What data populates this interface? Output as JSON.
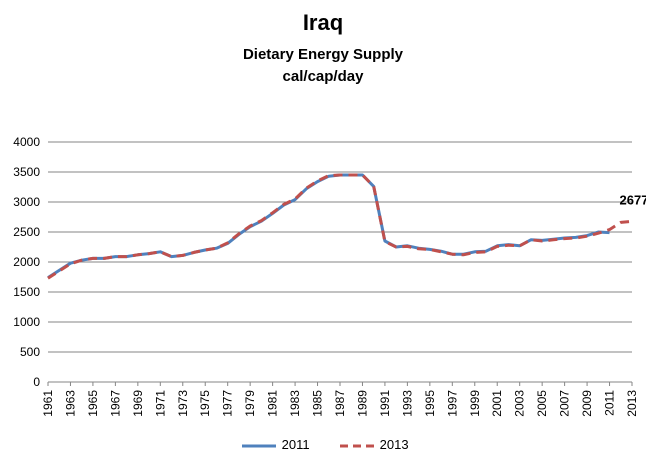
{
  "chart_data": {
    "type": "line",
    "title": "Iraq",
    "subtitle": [
      "Dietary Energy Supply",
      "cal/cap/day"
    ],
    "xlabel": "",
    "ylabel": "",
    "ylim": [
      0,
      4000
    ],
    "yticks": [
      0,
      500,
      1000,
      1500,
      2000,
      2500,
      3000,
      3500,
      4000
    ],
    "xticks": [
      "1961",
      "1963",
      "1965",
      "1967",
      "1969",
      "1971",
      "1973",
      "1975",
      "1977",
      "1979",
      "1981",
      "1983",
      "1985",
      "1987",
      "1989",
      "1991",
      "1993",
      "1995",
      "1997",
      "1999",
      "2001",
      "2003",
      "2005",
      "2007",
      "2009",
      "2011",
      "2013"
    ],
    "grid": true,
    "legend_position": "bottom",
    "series": [
      {
        "name": "2011",
        "color": "#4F81BD",
        "style": "solid",
        "x": [
          1961,
          1962,
          1963,
          1964,
          1965,
          1966,
          1967,
          1968,
          1969,
          1970,
          1971,
          1972,
          1973,
          1974,
          1975,
          1976,
          1977,
          1978,
          1979,
          1980,
          1981,
          1982,
          1983,
          1984,
          1985,
          1986,
          1987,
          1988,
          1989,
          1990,
          1991,
          1992,
          1993,
          1994,
          1995,
          1996,
          1997,
          1998,
          1999,
          2000,
          2001,
          2002,
          2003,
          2004,
          2005,
          2006,
          2007,
          2008,
          2009,
          2010,
          2011
        ],
        "values": [
          1740,
          1860,
          1980,
          2030,
          2060,
          2060,
          2090,
          2090,
          2120,
          2140,
          2170,
          2090,
          2110,
          2160,
          2200,
          2230,
          2310,
          2460,
          2590,
          2680,
          2810,
          2950,
          3040,
          3220,
          3340,
          3430,
          3450,
          3450,
          3450,
          3260,
          2350,
          2250,
          2270,
          2230,
          2210,
          2180,
          2130,
          2130,
          2170,
          2180,
          2270,
          2290,
          2270,
          2370,
          2360,
          2380,
          2400,
          2410,
          2440,
          2500,
          2490
        ]
      },
      {
        "name": "2013",
        "color": "#C0504D",
        "style": "dashed",
        "x": [
          1961,
          1962,
          1963,
          1964,
          1965,
          1966,
          1967,
          1968,
          1969,
          1970,
          1971,
          1972,
          1973,
          1974,
          1975,
          1976,
          1977,
          1978,
          1979,
          1980,
          1981,
          1982,
          1983,
          1984,
          1985,
          1986,
          1987,
          1988,
          1989,
          1990,
          1991,
          1992,
          1993,
          1994,
          1995,
          1996,
          1997,
          1998,
          1999,
          2000,
          2001,
          2002,
          2003,
          2004,
          2005,
          2006,
          2007,
          2008,
          2009,
          2010,
          2011,
          2012,
          2013
        ],
        "values": [
          1730,
          1850,
          1970,
          2030,
          2060,
          2060,
          2090,
          2090,
          2120,
          2140,
          2170,
          2090,
          2110,
          2160,
          2200,
          2230,
          2320,
          2470,
          2600,
          2690,
          2820,
          2960,
          3050,
          3230,
          3350,
          3440,
          3450,
          3450,
          3450,
          3260,
          2340,
          2250,
          2260,
          2220,
          2210,
          2170,
          2130,
          2120,
          2160,
          2170,
          2260,
          2280,
          2270,
          2370,
          2350,
          2370,
          2390,
          2400,
          2430,
          2480,
          2540,
          2660,
          2677
        ]
      }
    ],
    "annotations": [
      {
        "text": "2677",
        "x": 2013,
        "y": 2677
      }
    ]
  }
}
